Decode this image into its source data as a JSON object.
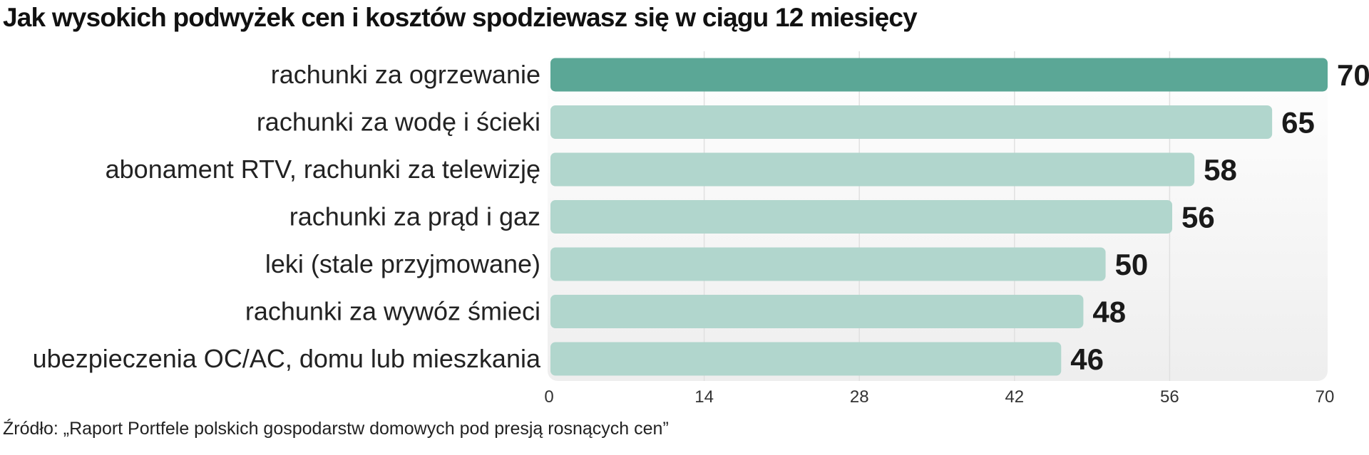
{
  "title": "Jak wysokich podwyżek cen i kosztów spodziewasz się w ciągu 12 miesięcy",
  "source": "Źródło: „Raport Portfele polskich gospodarstw domowych pod presją rosnących cen”",
  "colors": {
    "highlight_bar": "#5ba796",
    "bar": "#b1d6cd",
    "plot_background": "#eeeeee",
    "text": "#1a1a1a"
  },
  "chart_data": {
    "type": "bar",
    "orientation": "horizontal",
    "categories": [
      "rachunki za ogrzewanie",
      "rachunki za wodę i ścieki",
      "abonament RTV, rachunki za telewizję",
      "rachunki za prąd i gaz",
      "leki (stale przyjmowane)",
      "rachunki za wywóz śmieci",
      "ubezpieczenia OC/AC, domu lub mieszkania"
    ],
    "values": [
      70,
      65,
      58,
      56,
      50,
      48,
      46
    ],
    "data_labels": [
      "70",
      "65",
      "58",
      "56",
      "50",
      "48",
      "46"
    ],
    "xlim": [
      0,
      70
    ],
    "xticks": [
      0,
      14,
      28,
      42,
      56,
      70
    ],
    "xtick_labels": [
      "0",
      "14",
      "28",
      "42",
      "56",
      "70"
    ],
    "highlighted_index": 0,
    "grid": "vertical",
    "legend": "none"
  }
}
